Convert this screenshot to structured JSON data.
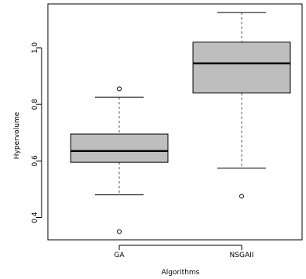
{
  "chart_data": {
    "type": "boxplot",
    "title": "",
    "xlabel": "Algorithms",
    "ylabel": "Hypervolume",
    "ylim": [
      0.32,
      1.2
    ],
    "yticks": [
      "0.4",
      "0.6",
      "0.8",
      "1.0"
    ],
    "categories": [
      "GA",
      "NSGAII"
    ],
    "boxes": [
      {
        "name": "GA",
        "whisker_low": 0.48,
        "q1": 0.595,
        "median": 0.635,
        "q3": 0.695,
        "whisker_high": 0.825,
        "outliers": [
          0.855,
          0.35
        ]
      },
      {
        "name": "NSGAII",
        "whisker_low": 0.575,
        "q1": 0.84,
        "median": 0.945,
        "q3": 1.02,
        "whisker_high": 1.125,
        "outliers": [
          0.475
        ]
      }
    ],
    "colors": {
      "box_fill": "#bebebe",
      "stroke": "#000000",
      "whisker": "#555555"
    },
    "grid": false,
    "legend": "none"
  }
}
